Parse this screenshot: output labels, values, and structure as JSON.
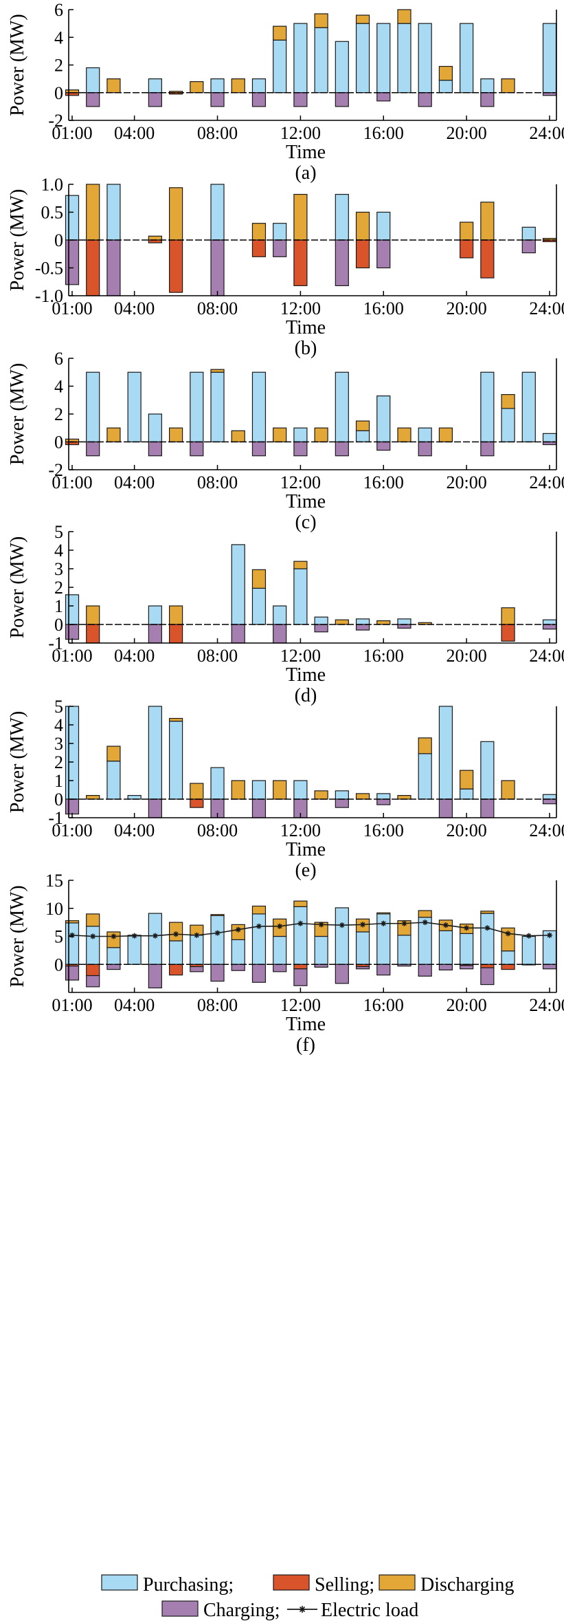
{
  "colors": {
    "purchasing": "#a8daf3",
    "selling": "#d9542a",
    "discharging": "#e3a738",
    "charging": "#a57fb0",
    "edge": "#1a1a1a"
  },
  "legend": {
    "purchasing": "Purchasing;",
    "selling": "Selling;",
    "discharging": "Discharging",
    "charging": "Charging;",
    "load": "Electric load"
  },
  "chart_data": [
    {
      "type": "bar",
      "panel": "(a)",
      "xlabel": "Time",
      "ylabel": "Power (MW)",
      "ylim": [
        -2,
        6
      ],
      "yticks": [
        "-2",
        "0",
        "2",
        "4",
        "6"
      ],
      "yticks_values": [
        -2,
        0,
        2,
        4,
        6
      ],
      "xticks": [
        "01:00",
        "04:00",
        "08:00",
        "12:00",
        "16:00",
        "20:00",
        "24:00"
      ],
      "xticks_hours": [
        1,
        4,
        8,
        12,
        16,
        20,
        24
      ],
      "hours": [
        1,
        2,
        3,
        4,
        5,
        6,
        7,
        8,
        9,
        10,
        11,
        12,
        13,
        14,
        15,
        16,
        17,
        18,
        19,
        20,
        21,
        22,
        23,
        24
      ],
      "series": [
        {
          "key": "purchasing",
          "values": [
            0,
            1.8,
            0,
            0,
            1,
            0,
            0,
            1,
            0,
            1,
            3.8,
            5,
            4.7,
            3.7,
            5,
            5,
            5,
            5,
            0.9,
            5,
            1,
            0,
            0,
            5
          ]
        },
        {
          "key": "discharging",
          "values": [
            0.2,
            0,
            1,
            0,
            0,
            0.1,
            0.8,
            0,
            1,
            0,
            1,
            0,
            1,
            0,
            0.6,
            0,
            1,
            0,
            1,
            0,
            0,
            1,
            0,
            0
          ]
        },
        {
          "key": "selling",
          "values": [
            -0.2,
            0,
            0,
            0,
            0,
            -0.1,
            0,
            0,
            0,
            0,
            0,
            0,
            0,
            0,
            0,
            0,
            0,
            0,
            0,
            0,
            0,
            0,
            0,
            0
          ]
        },
        {
          "key": "charging",
          "values": [
            0,
            -1,
            0,
            0,
            -1,
            0,
            0,
            -1,
            0,
            -1,
            0,
            -1,
            0,
            -1,
            0,
            -0.6,
            0,
            -1,
            0,
            0,
            -1,
            0,
            0,
            -0.2
          ]
        }
      ]
    },
    {
      "type": "bar",
      "panel": "(b)",
      "xlabel": "Time",
      "ylabel": "Power (MW)",
      "ylim": [
        -1,
        1
      ],
      "yticks": [
        "-1.0",
        "-0.5",
        "0",
        "0.5",
        "1.0"
      ],
      "yticks_values": [
        -1,
        -0.5,
        0,
        0.5,
        1
      ],
      "xticks": [
        "01:00",
        "04:00",
        "08:00",
        "12:00",
        "16:00",
        "20:00",
        "24:00"
      ],
      "xticks_hours": [
        1,
        4,
        8,
        12,
        16,
        20,
        24
      ],
      "hours": [
        1,
        2,
        3,
        4,
        5,
        6,
        7,
        8,
        9,
        10,
        11,
        12,
        13,
        14,
        15,
        16,
        17,
        18,
        19,
        20,
        21,
        22,
        23,
        24
      ],
      "series": [
        {
          "key": "purchasing",
          "values": [
            0.8,
            0,
            1,
            0,
            0,
            0,
            0,
            1,
            0,
            0,
            0.3,
            0,
            0,
            0.82,
            0,
            0.5,
            0,
            0,
            0,
            0,
            0,
            0,
            0.23,
            0
          ]
        },
        {
          "key": "discharging",
          "values": [
            0,
            1,
            0,
            0,
            0.07,
            0.94,
            0,
            0,
            0,
            0.3,
            0,
            0.82,
            0,
            0,
            0.5,
            0,
            0,
            0,
            0,
            0.32,
            0.68,
            0,
            0,
            0.03
          ]
        },
        {
          "key": "selling",
          "values": [
            0,
            -1,
            0,
            0,
            -0.05,
            -0.94,
            0,
            0,
            0,
            -0.3,
            0,
            -0.82,
            0,
            0,
            -0.5,
            0,
            0,
            0,
            0,
            -0.32,
            -0.68,
            0,
            0,
            -0.03
          ]
        },
        {
          "key": "charging",
          "values": [
            -0.8,
            0,
            -1,
            0,
            0,
            0,
            0,
            -1,
            0,
            0,
            -0.3,
            0,
            0,
            -0.82,
            0,
            -0.5,
            0,
            0,
            0,
            0,
            0,
            0,
            -0.23,
            0
          ]
        }
      ]
    },
    {
      "type": "bar",
      "panel": "(c)",
      "xlabel": "Time",
      "ylabel": "Power (MW)",
      "ylim": [
        -2,
        6
      ],
      "yticks": [
        "-2",
        "0",
        "2",
        "4",
        "6"
      ],
      "yticks_values": [
        -2,
        0,
        2,
        4,
        6
      ],
      "xticks": [
        "01:00",
        "04:00",
        "08:00",
        "12:00",
        "16:00",
        "20:00",
        "24:00"
      ],
      "xticks_hours": [
        1,
        4,
        8,
        12,
        16,
        20,
        24
      ],
      "hours": [
        1,
        2,
        3,
        4,
        5,
        6,
        7,
        8,
        9,
        10,
        11,
        12,
        13,
        14,
        15,
        16,
        17,
        18,
        19,
        20,
        21,
        22,
        23,
        24
      ],
      "series": [
        {
          "key": "purchasing",
          "values": [
            0,
            5,
            0,
            5,
            2,
            0,
            5,
            5,
            0,
            5,
            0,
            1,
            0,
            5,
            0.8,
            3.3,
            0,
            1,
            0,
            0,
            5,
            2.4,
            5,
            0.6
          ]
        },
        {
          "key": "discharging",
          "values": [
            0.2,
            0,
            1,
            0,
            0,
            1,
            0,
            0.2,
            0.8,
            0,
            1,
            0,
            1,
            0,
            0.7,
            0,
            1,
            0,
            1,
            0,
            0,
            1,
            0,
            0
          ]
        },
        {
          "key": "selling",
          "values": [
            -0.2,
            0,
            0,
            0,
            0,
            0,
            0,
            0,
            0,
            0,
            0,
            0,
            0,
            0,
            0,
            0,
            0,
            0,
            0,
            0,
            0,
            0,
            0,
            0
          ]
        },
        {
          "key": "charging",
          "values": [
            0,
            -1,
            0,
            0,
            -1,
            0,
            -1,
            0,
            0,
            -1,
            0,
            -1,
            0,
            -1,
            0,
            -0.6,
            0,
            -1,
            0,
            0,
            -1,
            0,
            0,
            -0.2
          ]
        }
      ]
    },
    {
      "type": "bar",
      "panel": "(d)",
      "xlabel": "Time",
      "ylabel": "Power (MW)",
      "ylim": [
        -1,
        5
      ],
      "yticks": [
        "-1",
        "0",
        "1",
        "2",
        "3",
        "4",
        "5"
      ],
      "yticks_values": [
        -1,
        0,
        1,
        2,
        3,
        4,
        5
      ],
      "xticks": [
        "01:00",
        "04:00",
        "08:00",
        "12:00",
        "16:00",
        "20:00",
        "24:00"
      ],
      "xticks_hours": [
        1,
        4,
        8,
        12,
        16,
        20,
        24
      ],
      "hours": [
        1,
        2,
        3,
        4,
        5,
        6,
        7,
        8,
        9,
        10,
        11,
        12,
        13,
        14,
        15,
        16,
        17,
        18,
        19,
        20,
        21,
        22,
        23,
        24
      ],
      "series": [
        {
          "key": "purchasing",
          "values": [
            1.6,
            0,
            0,
            0,
            1,
            0,
            0,
            0,
            4.3,
            1.95,
            1,
            3,
            0.4,
            0,
            0.3,
            0,
            0.3,
            0,
            0,
            0,
            0,
            0,
            0,
            0.25
          ]
        },
        {
          "key": "discharging",
          "values": [
            0,
            1,
            0,
            0,
            0,
            1,
            0,
            0,
            0,
            1,
            0,
            0.4,
            0,
            0.25,
            0,
            0.2,
            0,
            0.1,
            0,
            0,
            0,
            0.9,
            0,
            0
          ]
        },
        {
          "key": "selling",
          "values": [
            0,
            -1,
            0,
            0,
            0,
            -1,
            0,
            0,
            0,
            0,
            0,
            0,
            0,
            0,
            0,
            0,
            0,
            0,
            0,
            0,
            0,
            -0.9,
            0,
            0
          ]
        },
        {
          "key": "charging",
          "values": [
            -0.8,
            0,
            0,
            0,
            -1,
            0,
            0,
            0,
            -1,
            0,
            -1,
            0,
            -0.4,
            0,
            -0.3,
            0,
            -0.2,
            0,
            0,
            0,
            0,
            0,
            0,
            -0.25
          ]
        }
      ]
    },
    {
      "type": "bar",
      "panel": "(e)",
      "xlabel": "Time",
      "ylabel": "Power (MW)",
      "ylim": [
        -1,
        5
      ],
      "yticks": [
        "-1",
        "0",
        "1",
        "2",
        "3",
        "4",
        "5"
      ],
      "yticks_values": [
        -1,
        0,
        1,
        2,
        3,
        4,
        5
      ],
      "xticks": [
        "01:00",
        "04:00",
        "08:00",
        "12:00",
        "16:00",
        "20:00",
        "24:00"
      ],
      "xticks_hours": [
        1,
        4,
        8,
        12,
        16,
        20,
        24
      ],
      "hours": [
        1,
        2,
        3,
        4,
        5,
        6,
        7,
        8,
        9,
        10,
        11,
        12,
        13,
        14,
        15,
        16,
        17,
        18,
        19,
        20,
        21,
        22,
        23,
        24
      ],
      "series": [
        {
          "key": "purchasing",
          "values": [
            5,
            0,
            2.05,
            0.2,
            5,
            4.2,
            0,
            1.7,
            0,
            1,
            0,
            1,
            0,
            0.45,
            0,
            0.3,
            0,
            2.45,
            5,
            0.55,
            3.1,
            0,
            0,
            0.25
          ]
        },
        {
          "key": "discharging",
          "values": [
            0,
            0.2,
            0.8,
            0,
            0,
            0.15,
            0.85,
            0,
            1,
            0,
            1,
            0,
            0.45,
            0,
            0.3,
            0,
            0.2,
            0.85,
            0,
            1,
            0,
            1,
            0,
            0
          ]
        },
        {
          "key": "selling",
          "values": [
            0,
            0,
            0,
            0,
            0,
            0,
            -0.45,
            0,
            0,
            0,
            0,
            0,
            0,
            0,
            0,
            0,
            0,
            0,
            0,
            0,
            0,
            0,
            0,
            0
          ]
        },
        {
          "key": "charging",
          "values": [
            -0.8,
            0,
            0,
            0,
            -1,
            0,
            0,
            -1,
            0,
            -1,
            0,
            -1,
            0,
            -0.45,
            0,
            -0.3,
            0,
            0,
            -1,
            0,
            -1,
            0,
            0,
            -0.25
          ]
        }
      ]
    },
    {
      "type": "bar",
      "panel": "(f)",
      "xlabel": "Time",
      "ylabel": "Power (MW)",
      "ylim": [
        -5,
        15
      ],
      "yticks": [
        "0",
        "5",
        "10",
        "15"
      ],
      "yticks_values": [
        0,
        5,
        10,
        15
      ],
      "xticks": [
        "01:00",
        "04:00",
        "08:00",
        "12:00",
        "16:00",
        "20:00",
        "24:00"
      ],
      "xticks_hours": [
        1,
        4,
        8,
        12,
        16,
        20,
        24
      ],
      "hours": [
        1,
        2,
        3,
        4,
        5,
        6,
        7,
        8,
        9,
        10,
        11,
        12,
        13,
        14,
        15,
        16,
        17,
        18,
        19,
        20,
        21,
        22,
        23,
        24
      ],
      "series": [
        {
          "key": "purchasing",
          "values": [
            7.4,
            6.8,
            3.0,
            5.2,
            9.1,
            4.2,
            5.2,
            8.7,
            4.4,
            9.0,
            5.0,
            10.3,
            5.0,
            10.1,
            5.8,
            9.0,
            5.2,
            8.4,
            6.0,
            5.5,
            9.1,
            2.4,
            5.0,
            6.0
          ]
        },
        {
          "key": "discharging",
          "values": [
            0.4,
            2.2,
            2.8,
            0,
            0,
            3.3,
            1.8,
            0.2,
            2.7,
            1.4,
            3.1,
            1.0,
            2.5,
            0,
            2.3,
            0.2,
            2.6,
            1.2,
            1.9,
            1.7,
            0.4,
            4.1,
            0,
            0
          ]
        },
        {
          "key": "selling",
          "values": [
            -0.3,
            -2.0,
            0,
            0,
            0,
            -1.9,
            -0.4,
            0,
            0,
            0,
            0,
            -0.8,
            0,
            0,
            -0.4,
            0,
            0,
            0,
            0,
            -0.2,
            -0.6,
            -0.9,
            0,
            0
          ]
        },
        {
          "key": "charging",
          "values": [
            -2.5,
            -2.0,
            -0.9,
            0,
            -4.2,
            0,
            -0.9,
            -3.0,
            -1.1,
            -3.2,
            -1.3,
            -3.0,
            -0.5,
            -3.4,
            -0.4,
            -1.9,
            -0.3,
            -2.1,
            -1.0,
            -0.6,
            -3.0,
            0,
            -0.1,
            -0.8
          ]
        },
        {
          "key": "load",
          "type": "line",
          "values": [
            5.2,
            5.0,
            5.0,
            5.1,
            5.1,
            5.4,
            5.2,
            5.6,
            6.2,
            6.8,
            6.8,
            7.3,
            7.1,
            7.0,
            7.1,
            7.3,
            7.3,
            7.5,
            7.0,
            6.5,
            6.5,
            5.5,
            5.1,
            5.2
          ]
        }
      ]
    }
  ]
}
